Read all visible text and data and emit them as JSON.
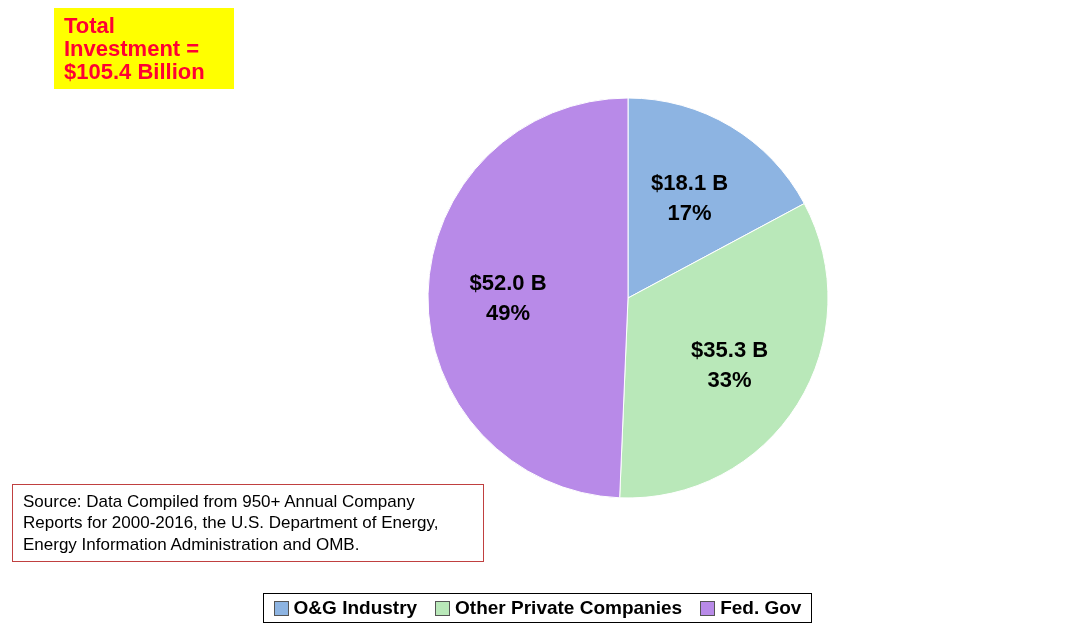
{
  "chart_data": {
    "type": "pie",
    "categories": [
      "O&G Industry",
      "Other Private Companies",
      "Fed. Gov"
    ],
    "values": [
      18.1,
      35.3,
      52.0
    ],
    "colors": [
      "#8db4e2",
      "#b9e8b9",
      "#b88ae8"
    ],
    "value_labels": [
      "$18.1 B\n17%",
      "$35.3 B\n33%",
      "$52.0 B\n49%"
    ],
    "legend": "bottom",
    "annotations": [
      "Total Investment = $105.4 Billion",
      "Source: Data Compiled from 950+ Annual Company Reports for 2000-2016, the U.S. Department  of Energy, Energy Information Administration and OMB."
    ]
  }
}
